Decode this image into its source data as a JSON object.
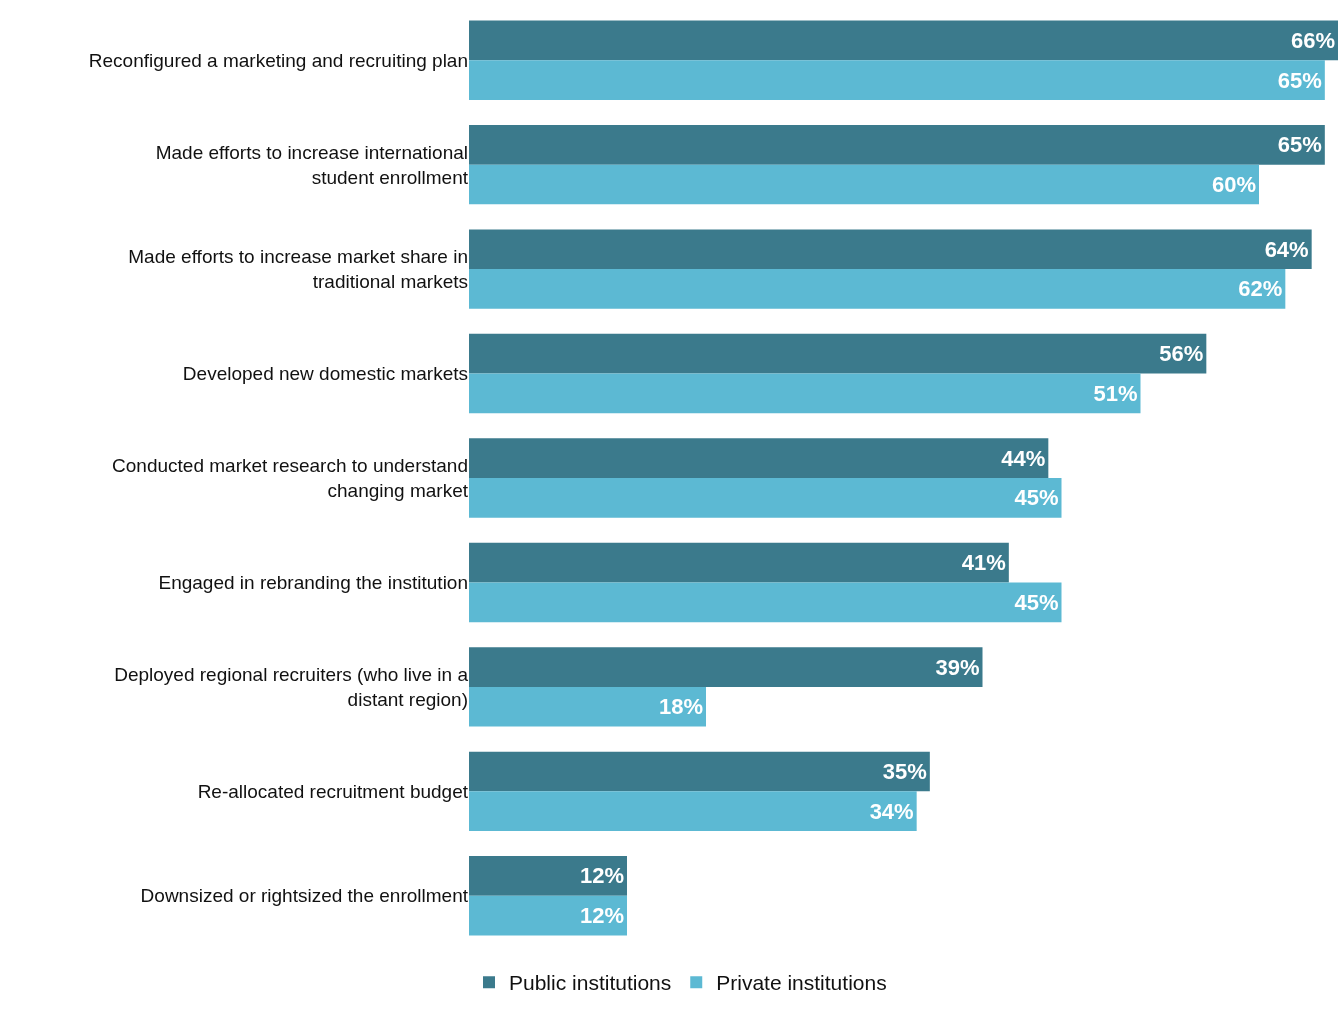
{
  "chart_data": {
    "type": "bar",
    "orientation": "horizontal",
    "categories": [
      "Reconfigured a marketing and recruiting plan",
      "Made efforts to increase international student enrollment",
      "Made efforts to increase market share in traditional markets",
      "Developed new domestic markets",
      "Conducted market research to understand changing market",
      "Engaged in rebranding the institution",
      "Deployed regional recruiters (who live in a distant region)",
      "Re-allocated recruitment budget",
      "Downsized or rightsized the enrollment"
    ],
    "series": [
      {
        "name": "Public institutions",
        "color": "#3b7a8c",
        "values": [
          66,
          65,
          64,
          56,
          44,
          41,
          39,
          35,
          12
        ],
        "value_labels": [
          "66%",
          "65%",
          "64%",
          "56%",
          "44%",
          "41%",
          "39%",
          "35%",
          "12%"
        ]
      },
      {
        "name": "Private institutions",
        "color": "#5cb9d3",
        "values": [
          65,
          60,
          62,
          51,
          45,
          45,
          18,
          34,
          12
        ],
        "value_labels": [
          "65%",
          "60%",
          "62%",
          "51%",
          "45%",
          "45%",
          "18%",
          "34%",
          "12%"
        ]
      }
    ],
    "xlim": [
      0,
      66
    ],
    "tick_labels": "y",
    "grid": false,
    "legend": "bottom"
  }
}
